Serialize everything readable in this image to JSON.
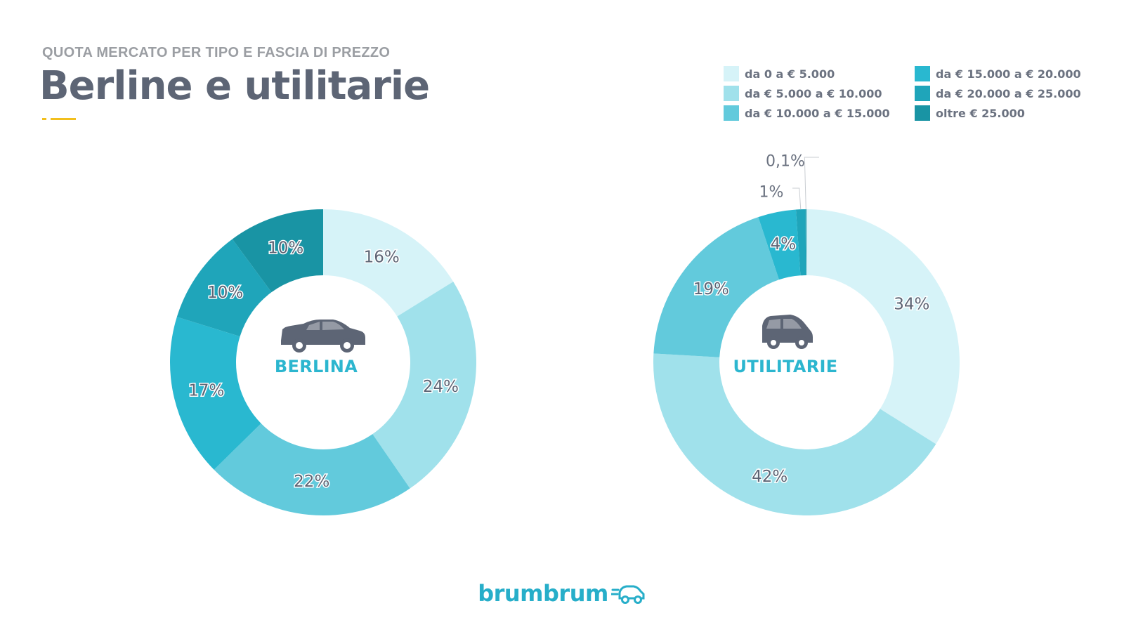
{
  "header": {
    "kicker": "QUOTA MERCATO PER TIPO E FASCIA DI PREZZO",
    "title": "Berline e utilitarie"
  },
  "legend": [
    {
      "label": "da 0 a € 5.000",
      "color": "#d6f3f8"
    },
    {
      "label": "da € 5.000 a € 10.000",
      "color": "#a0e1eb"
    },
    {
      "label": "da € 10.000 a € 15.000",
      "color": "#62cadc"
    },
    {
      "label": "da € 15.000 a € 20.000",
      "color": "#29b8d0"
    },
    {
      "label": "da € 20.000 a € 25.000",
      "color": "#1fa5ba"
    },
    {
      "label": "oltre € 25.000",
      "color": "#1994a4"
    }
  ],
  "chart_data": [
    {
      "type": "pie",
      "center_label": "BERLINA",
      "icon": "sedan-car-icon",
      "categories": [
        "da 0 a € 5.000",
        "da € 5.000 a € 10.000",
        "da € 10.000 a € 15.000",
        "da € 15.000 a € 20.000",
        "da € 20.000 a € 25.000",
        "oltre € 25.000"
      ],
      "values": [
        16,
        24,
        22,
        17,
        10,
        10
      ],
      "labels": [
        "16%",
        "24%",
        "22%",
        "17%",
        "10%",
        "10%"
      ]
    },
    {
      "type": "pie",
      "center_label": "UTILITARIE",
      "icon": "city-car-icon",
      "categories": [
        "da 0 a € 5.000",
        "da € 5.000 a € 10.000",
        "da € 10.000 a € 15.000",
        "da € 15.000 a € 20.000",
        "da € 20.000 a € 25.000",
        "oltre € 25.000"
      ],
      "values": [
        34,
        42,
        19,
        4,
        1,
        0.1
      ],
      "labels": [
        "34%",
        "42%",
        "19%",
        "4%",
        "1%",
        "0,1%"
      ]
    }
  ],
  "brand": {
    "name": "brumbrum",
    "icon": "car-logo-icon"
  }
}
